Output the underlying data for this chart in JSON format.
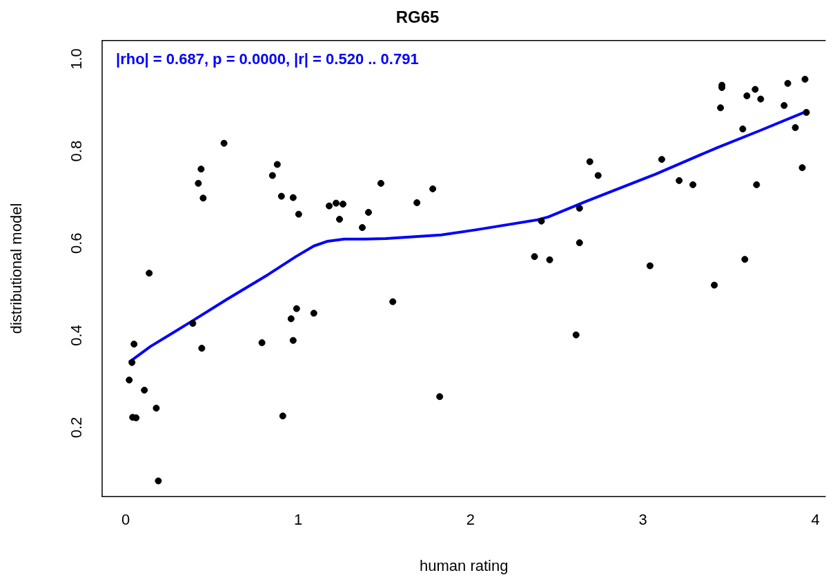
{
  "chart_data": {
    "type": "scatter",
    "title": "RG65",
    "xlabel": "human rating",
    "ylabel": "distributional model",
    "annotations": [
      "|rho| = 0.687, p = 0.0000, |r| = 0.520 .. 0.791"
    ],
    "xlim": [
      -0.137,
      4.06
    ],
    "ylim": [
      0.05,
      1.04
    ],
    "xticks": [
      0,
      1,
      2,
      3,
      4
    ],
    "yticks": [
      0.2,
      0.4,
      0.6,
      0.8,
      {
        "value": 1,
        "label": "1.0"
      }
    ],
    "grid": false,
    "legend": false,
    "marker": "circle",
    "series": [
      {
        "type": "scatter",
        "color": "#000000",
        "x": [
          0.02,
          0.036,
          0.048,
          0.04,
          0.06,
          0.108,
          0.136,
          0.177,
          0.189,
          0.389,
          0.421,
          0.437,
          0.449,
          0.441,
          0.57,
          0.79,
          0.851,
          0.879,
          0.903,
          0.911,
          0.959,
          0.971,
          0.971,
          0.991,
          1.003,
          1.091,
          1.18,
          1.22,
          1.24,
          1.26,
          1.372,
          1.408,
          1.48,
          1.549,
          1.689,
          1.781,
          1.821,
          2.371,
          2.411,
          2.459,
          2.612,
          2.632,
          2.632,
          2.692,
          2.74,
          3.041,
          3.109,
          3.21,
          3.29,
          3.414,
          3.45,
          3.458,
          3.458,
          3.579,
          3.591,
          3.603,
          3.651,
          3.659,
          3.683,
          3.819,
          3.84,
          3.884,
          3.924,
          3.94,
          3.948
        ],
        "values": [
          0.303,
          0.341,
          0.381,
          0.222,
          0.221,
          0.281,
          0.535,
          0.242,
          0.084,
          0.426,
          0.73,
          0.761,
          0.698,
          0.372,
          0.817,
          0.384,
          0.747,
          0.771,
          0.702,
          0.225,
          0.436,
          0.699,
          0.389,
          0.458,
          0.663,
          0.448,
          0.681,
          0.687,
          0.652,
          0.685,
          0.634,
          0.667,
          0.73,
          0.473,
          0.688,
          0.718,
          0.267,
          0.571,
          0.648,
          0.564,
          0.401,
          0.601,
          0.676,
          0.777,
          0.747,
          0.551,
          0.782,
          0.736,
          0.727,
          0.509,
          0.894,
          0.943,
          0.938,
          0.848,
          0.565,
          0.92,
          0.934,
          0.727,
          0.913,
          0.899,
          0.947,
          0.851,
          0.764,
          0.956,
          0.884
        ]
      },
      {
        "type": "line",
        "color": "#0000ff",
        "marker": "none",
        "x": [
          0.02,
          0.144,
          0.385,
          0.586,
          0.826,
          0.987,
          1.091,
          1.168,
          1.268,
          1.388,
          1.509,
          1.829,
          2.03,
          2.391,
          2.451,
          2.672,
          3.073,
          3.434,
          3.675,
          3.948
        ],
        "values": [
          0.342,
          0.376,
          0.431,
          0.478,
          0.532,
          0.571,
          0.594,
          0.604,
          0.609,
          0.609,
          0.61,
          0.618,
          0.629,
          0.651,
          0.657,
          0.691,
          0.75,
          0.808,
          0.844,
          0.886
        ]
      }
    ]
  }
}
